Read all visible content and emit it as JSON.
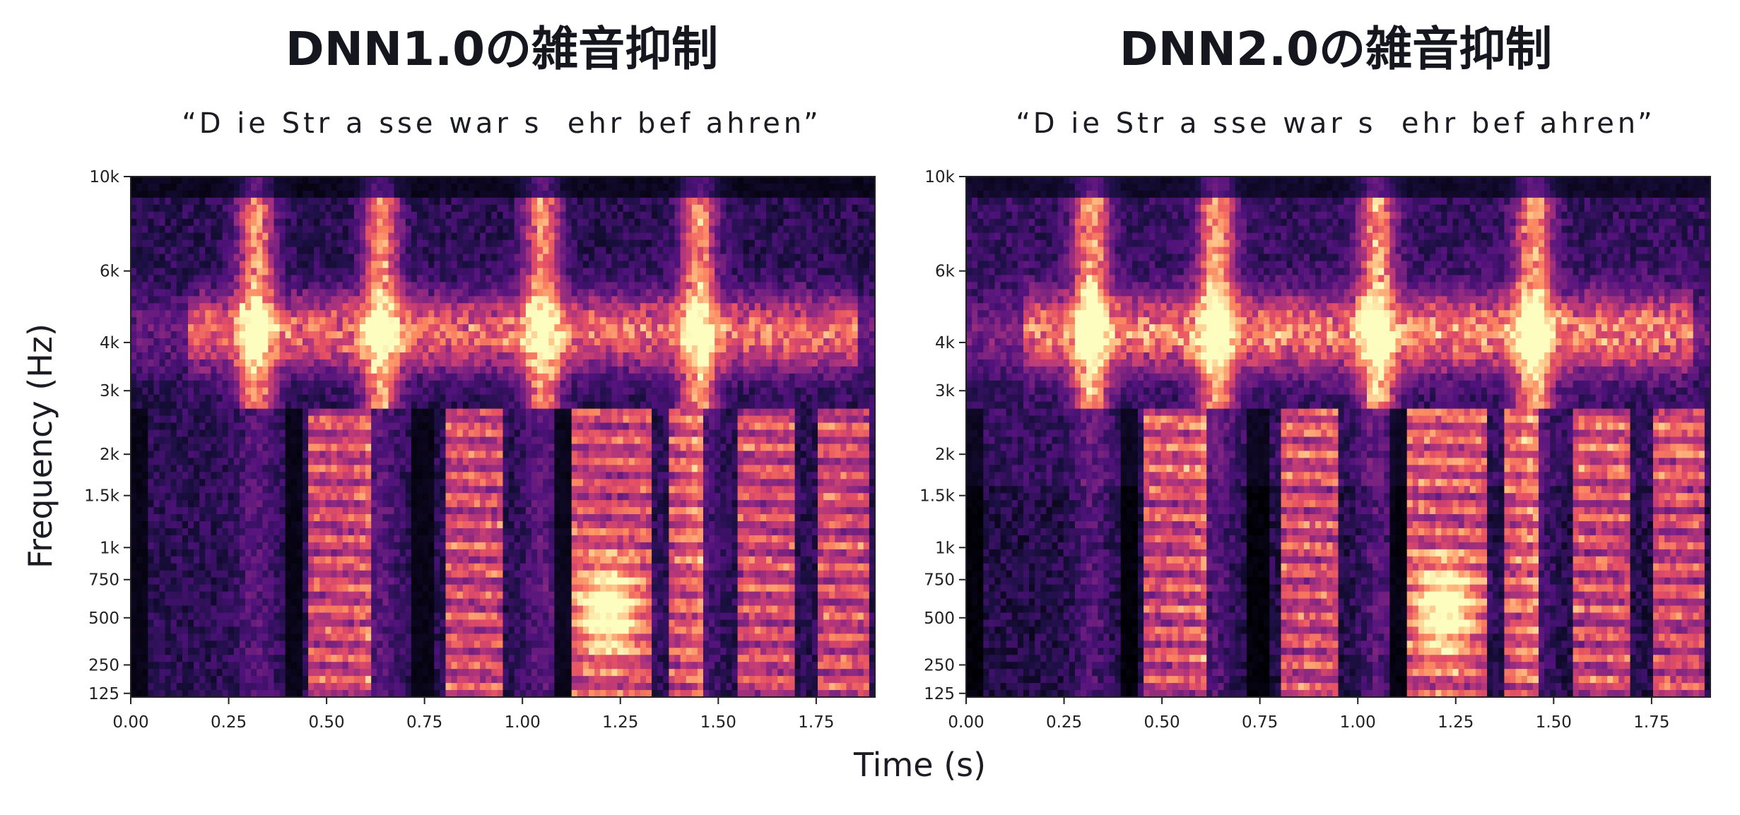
{
  "chart_data": [
    {
      "type": "heatmap",
      "title": "DNN1.0の雑音抑制",
      "subtitle": "“D ie Str a sse war s  ehr bef ahren”",
      "xlabel": "Time (s)",
      "ylabel": "Frequency (Hz)",
      "xlim": [
        0.0,
        1.9
      ],
      "ylim": [
        110,
        10000
      ],
      "y_scale": "mel",
      "x_ticks": [
        "0.00",
        "0.25",
        "0.50",
        "0.75",
        "1.00",
        "1.25",
        "1.50",
        "1.75"
      ],
      "y_ticks": [
        "125",
        "250",
        "500",
        "750",
        "1k",
        "1.5k",
        "2k",
        "3k",
        "4k",
        "6k",
        "10k"
      ],
      "colormap": "magma",
      "grid": false
    },
    {
      "type": "heatmap",
      "title": "DNN2.0の雑音抑制",
      "subtitle": "“D ie Str a sse war s  ehr bef ahren”",
      "xlabel": "Time (s)",
      "ylabel": "Frequency (Hz)",
      "xlim": [
        0.0,
        1.9
      ],
      "ylim": [
        110,
        10000
      ],
      "y_scale": "mel",
      "x_ticks": [
        "0.00",
        "0.25",
        "0.50",
        "0.75",
        "1.00",
        "1.25",
        "1.50",
        "1.75"
      ],
      "y_ticks": [
        "125",
        "250",
        "500",
        "750",
        "1k",
        "1.5k",
        "2k",
        "3k",
        "4k",
        "6k",
        "10k"
      ],
      "colormap": "magma",
      "grid": false
    }
  ],
  "shared": {
    "xlabel": "Time (s)",
    "ylabel": "Frequency (Hz)"
  },
  "colors": {
    "cmap_low": "#000004",
    "cmap_mid": "#b73779",
    "cmap_high": "#fcfdbf"
  }
}
